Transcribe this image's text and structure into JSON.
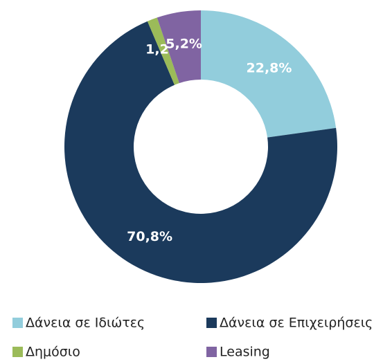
{
  "chart_data": {
    "type": "donut",
    "categories": [
      "Δάνεια σε Ιδιώτες",
      "Δάνεια σε Επιχειρήσεις",
      "Δημόσιο",
      "Leasing"
    ],
    "values": [
      22.8,
      70.8,
      1.2,
      5.2
    ],
    "value_labels": [
      "22,8%",
      "70,8%",
      "1,2%",
      "5,2%"
    ],
    "colors": [
      "#92cddc",
      "#1b3a5c",
      "#9bbb59",
      "#8064a2"
    ]
  }
}
